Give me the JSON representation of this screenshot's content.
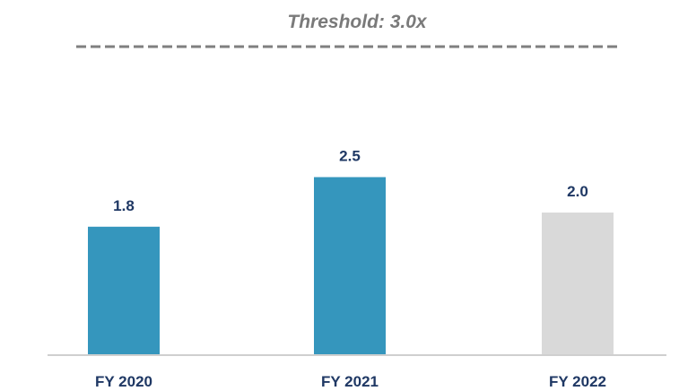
{
  "chart_data": {
    "type": "bar",
    "categories": [
      "FY 2020",
      "FY 2021",
      "FY 2022"
    ],
    "values": [
      1.8,
      2.5,
      2.0
    ],
    "value_labels": [
      "1.8",
      "2.5",
      "2.0"
    ],
    "bar_colors": [
      "#3596bd",
      "#3596bd",
      "#d9d9d9"
    ],
    "ylim": [
      0,
      3.0
    ],
    "threshold": {
      "value": 3.0,
      "label": "Threshold: 3.0x",
      "color": "#7f7f7f",
      "style": "dashed"
    },
    "grid": false,
    "legend": "none",
    "title": "",
    "xlabel": "",
    "ylabel": ""
  }
}
